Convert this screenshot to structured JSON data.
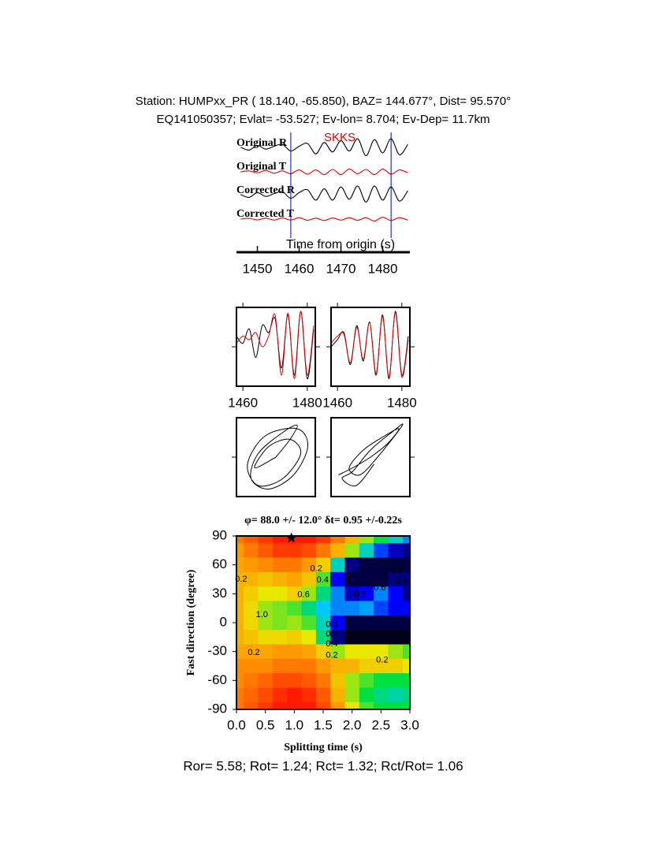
{
  "chart_data": [
    {
      "type": "seismogram",
      "title": "Station: HUMPxx_PR (  18.140,  -65.850), BAZ=  144.677°, Dist=   95.570°",
      "subtitle": "EQ141050357; Evlat= -53.527; Ev-lon=   8.704; Ev-Dep= 11.7km",
      "xlabel": "Time from origin (s)",
      "phase": "SKKS",
      "phase_color": "#dd0000",
      "window": [
        1458,
        1482
      ],
      "window_color": "#0000cc",
      "xlim": [
        1445,
        1486.5
      ],
      "xticks": [
        1450,
        1460,
        1470,
        1480
      ],
      "x": [
        1446,
        1448,
        1450,
        1452,
        1454,
        1456,
        1458,
        1460,
        1462,
        1464,
        1466,
        1468,
        1470,
        1472,
        1474,
        1476,
        1478,
        1480,
        1482,
        1484,
        1486
      ],
      "series": [
        {
          "name": "Original R",
          "color": "#000000",
          "values": [
            0.1,
            -0.2,
            0.3,
            -0.1,
            0.2,
            0.4,
            -0.3,
            0.2,
            0.5,
            -0.6,
            0.6,
            -0.4,
            0.8,
            -0.3,
            1.0,
            -0.8,
            0.9,
            -0.5,
            1.0,
            -0.7,
            0.4
          ]
        },
        {
          "name": "Original T",
          "color": "#dd0000",
          "values": [
            0,
            0.1,
            -0.1,
            0.15,
            -0.15,
            0.1,
            -0.2,
            0.2,
            -0.25,
            0.2,
            -0.3,
            0.25,
            -0.3,
            0.3,
            -0.2,
            0.25,
            -0.3,
            0.3,
            -0.25,
            0.2,
            -0.1
          ]
        },
        {
          "name": "Corrected R",
          "color": "#000000",
          "values": [
            0.1,
            -0.2,
            0.3,
            -0.1,
            0.2,
            0.4,
            -0.3,
            0.3,
            0.6,
            -0.5,
            0.7,
            -0.5,
            0.9,
            -0.4,
            1.0,
            -0.7,
            1.0,
            -0.5,
            0.9,
            -0.6,
            0.5
          ]
        },
        {
          "name": "Corrected T",
          "color": "#dd0000",
          "values": [
            0,
            0.08,
            -0.08,
            0.1,
            -0.1,
            0.12,
            -0.1,
            0.15,
            -0.12,
            0.1,
            -0.15,
            0.12,
            -0.1,
            0.15,
            -0.12,
            0.15,
            -0.2,
            0.2,
            -0.15,
            0.15,
            -0.1
          ]
        }
      ]
    },
    {
      "type": "waveform-pair",
      "xlim": [
        1458,
        1482.5
      ],
      "xticks": [
        1460,
        1480
      ],
      "ylim": [
        -1,
        1
      ],
      "x": [
        1458,
        1460,
        1462,
        1464,
        1466,
        1468,
        1470,
        1472,
        1474,
        1476,
        1478,
        1480,
        1482
      ],
      "panels": [
        {
          "series": [
            {
              "color": "#000000",
              "values": [
                0.3,
                0.1,
                0.5,
                -0.3,
                0.6,
                0.4,
                0.8,
                -0.6,
                0.9,
                -0.8,
                1.0,
                -0.9,
                0.5
              ]
            },
            {
              "color": "#dd0000",
              "values": [
                0.1,
                0.3,
                0.2,
                0.4,
                0.0,
                0.3,
                0.9,
                -0.8,
                0.95,
                -0.9,
                1.0,
                -0.8,
                0.6
              ]
            }
          ]
        },
        {
          "series": [
            {
              "color": "#000000",
              "values": [
                0.0,
                0.2,
                0.4,
                -0.5,
                0.6,
                -0.4,
                0.7,
                -0.8,
                0.9,
                -0.9,
                1.0,
                -0.8,
                0.3
              ]
            },
            {
              "color": "#dd0000",
              "values": [
                0.1,
                0.3,
                0.35,
                -0.45,
                0.55,
                -0.35,
                0.7,
                -0.75,
                0.85,
                -0.85,
                0.95,
                -0.85,
                0.2
              ]
            }
          ]
        }
      ]
    },
    {
      "type": "particle-motion",
      "xlim": [
        -1,
        1
      ],
      "ylim": [
        -1,
        1
      ],
      "color": "#000000",
      "panels": [
        {
          "x": [
            0,
            0.4,
            0.6,
            0.2,
            -0.5,
            -0.7,
            -0.2,
            0.5,
            0.9,
            0.6,
            -0.3,
            -0.8,
            -0.5,
            0.2,
            0.7,
            0.4,
            -0.2,
            -0.6,
            0
          ],
          "values": [
            0,
            0.5,
            0.9,
            0.7,
            0.1,
            -0.6,
            -0.9,
            -0.5,
            0.3,
            0.8,
            0.6,
            -0.2,
            -0.8,
            -0.6,
            0.1,
            0.5,
            0.3,
            -0.3,
            0
          ]
        },
        {
          "x": [
            -0.9,
            -0.5,
            0.0,
            0.5,
            0.8,
            0.4,
            -0.2,
            -0.6,
            -0.3,
            0.2,
            0.9,
            0.6,
            0.0,
            -0.5,
            -0.8,
            -0.4,
            0.1
          ],
          "values": [
            -0.5,
            -0.3,
            0.0,
            0.4,
            0.8,
            0.6,
            0.2,
            -0.3,
            -0.5,
            0.0,
            0.9,
            0.7,
            0.2,
            -0.4,
            -0.6,
            -0.8,
            -0.2
          ]
        }
      ]
    },
    {
      "type": "contour",
      "title": "φ= 88.0 +/- 12.0° δt= 0.95 +/-0.22s",
      "xlabel": "Splitting time (s)",
      "ylabel": "Fast direction (degree)",
      "annotation": "Ror= 5.58; Rot= 1.24; Rct= 1.32; Rct/Rot= 1.06",
      "xlim": [
        0,
        3
      ],
      "ylim": [
        -90,
        90
      ],
      "xticks": [
        {
          "value": 0,
          "label": "0.0"
        },
        0.5,
        {
          "value": 1,
          "label": "1.0"
        },
        1.5,
        {
          "value": 2,
          "label": "2.0"
        },
        2.5,
        {
          "value": 3,
          "label": "3.0"
        }
      ],
      "yticks": [
        -90,
        -60,
        -30,
        0,
        30,
        60,
        90
      ],
      "x": [
        0,
        0.25,
        0.5,
        0.75,
        1,
        1.25,
        1.5,
        1.75,
        2,
        2.25,
        2.5,
        2.75,
        3
      ],
      "y": [
        90,
        75,
        60,
        45,
        30,
        15,
        0,
        -15,
        -30,
        -45,
        -60,
        -75,
        -90
      ],
      "z": [
        [
          0.85,
          0.9,
          0.95,
          1,
          1,
          1,
          0.95,
          0.85,
          0.75,
          0.6,
          0.5,
          0.4,
          0.3
        ],
        [
          0.8,
          0.85,
          0.9,
          0.95,
          0.95,
          0.92,
          0.85,
          0.75,
          0.6,
          0.4,
          0.25,
          0.15,
          0.1
        ],
        [
          0.78,
          0.8,
          0.82,
          0.85,
          0.85,
          0.8,
          0.7,
          0.4,
          0.1,
          0.05,
          0.05,
          0.05,
          0.05
        ],
        [
          0.75,
          0.75,
          0.72,
          0.75,
          0.78,
          0.72,
          0.55,
          0.2,
          0.05,
          0.05,
          0.05,
          0.1,
          0.1
        ],
        [
          0.75,
          0.7,
          0.65,
          0.65,
          0.7,
          0.6,
          0.45,
          0.3,
          0.15,
          0.2,
          0.3,
          0.2,
          0.1
        ],
        [
          0.75,
          0.68,
          0.6,
          0.58,
          0.55,
          0.45,
          0.35,
          0.3,
          0.3,
          0.32,
          0.25,
          0.2,
          0.2
        ],
        [
          0.75,
          0.68,
          0.6,
          0.58,
          0.6,
          0.55,
          0.4,
          0.2,
          0.05,
          0.05,
          0.05,
          0.05,
          0.05
        ],
        [
          0.75,
          0.72,
          0.68,
          0.68,
          0.7,
          0.65,
          0.45,
          0.1,
          0.02,
          0.02,
          0.02,
          0.02,
          0.02
        ],
        [
          0.78,
          0.78,
          0.78,
          0.8,
          0.8,
          0.78,
          0.7,
          0.6,
          0.65,
          0.65,
          0.65,
          0.6,
          0.55
        ],
        [
          0.82,
          0.82,
          0.82,
          0.85,
          0.85,
          0.85,
          0.8,
          0.75,
          0.75,
          0.7,
          0.7,
          0.7,
          0.65
        ],
        [
          0.82,
          0.85,
          0.88,
          0.92,
          0.92,
          0.9,
          0.85,
          0.72,
          0.6,
          0.55,
          0.5,
          0.5,
          0.5
        ],
        [
          0.85,
          0.88,
          0.92,
          0.97,
          1,
          0.97,
          0.9,
          0.75,
          0.6,
          0.5,
          0.45,
          0.42,
          0.45
        ],
        [
          0.85,
          0.9,
          0.95,
          1,
          1,
          1,
          0.92,
          0.8,
          0.65,
          0.55,
          0.5,
          0.5,
          0.5
        ]
      ],
      "colorscale": [
        [
          0,
          "#000000"
        ],
        [
          0.2,
          "#0000ff"
        ],
        [
          0.35,
          "#00c8ff"
        ],
        [
          0.5,
          "#00e040"
        ],
        [
          0.65,
          "#e8e800"
        ],
        [
          0.8,
          "#ff9900"
        ],
        [
          1,
          "#ff1a00"
        ]
      ],
      "contour_labels": [
        {
          "value": 0.2,
          "x": 1.38,
          "y": 56
        },
        {
          "value": 0.4,
          "x": 1.49,
          "y": 44
        },
        {
          "value": 0.2,
          "x": 2.77,
          "y": 54
        },
        {
          "value": 0.4,
          "x": 2.85,
          "y": 43
        },
        {
          "value": 0.6,
          "x": 2.48,
          "y": 36
        },
        {
          "value": 0.8,
          "x": 2.14,
          "y": 29
        },
        {
          "value": 0.6,
          "x": 1.16,
          "y": 29
        },
        {
          "value": 0.2,
          "x": 0.08,
          "y": 45
        },
        {
          "value": 1.0,
          "label": "1.0",
          "x": 0.44,
          "y": 8
        },
        {
          "value": 0.8,
          "x": 1.65,
          "y": -2
        },
        {
          "value": 0.6,
          "x": 1.65,
          "y": -12
        },
        {
          "value": 0.4,
          "x": 1.65,
          "y": -22
        },
        {
          "value": 0.2,
          "x": 1.65,
          "y": -34
        },
        {
          "value": 0.2,
          "x": 0.3,
          "y": -31
        },
        {
          "value": 0.2,
          "x": 2.52,
          "y": -39
        }
      ],
      "best": {
        "x": 0.95,
        "y": 88
      }
    }
  ]
}
